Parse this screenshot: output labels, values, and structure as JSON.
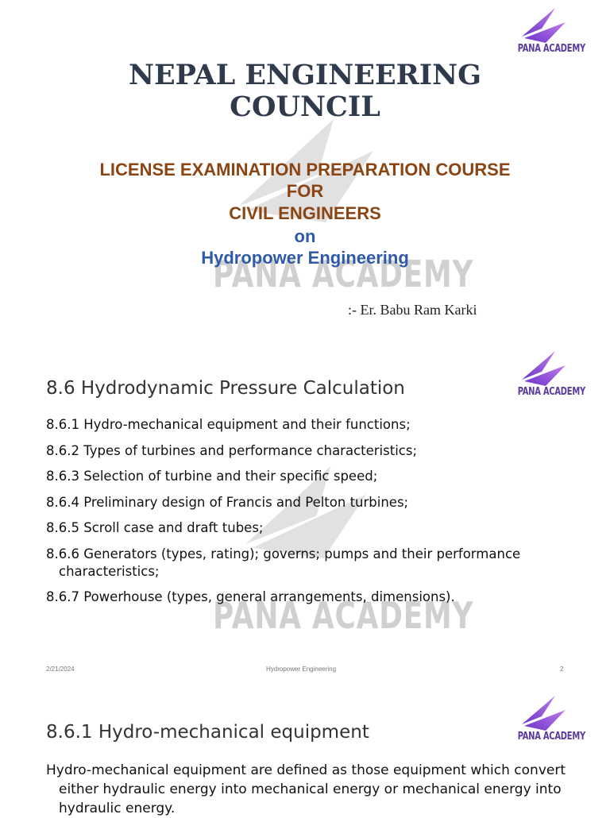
{
  "brand": {
    "logo_text": "PANA ACADEMY",
    "watermark_text": "PANA ACADEMY",
    "logo_colors": [
      "#7b3fd6",
      "#b06ce8"
    ]
  },
  "slide1": {
    "title_line1": "NEPAL ENGINEERING",
    "title_line2": "COUNCIL",
    "subtitle_line1": "LICENSE EXAMINATION PREPARATION COURSE",
    "subtitle_line2": "FOR",
    "subtitle_line3": "CIVIL ENGINEERS",
    "subtitle_on": "on",
    "subtitle_topic": "Hydropower Engineering",
    "author": ":- Er. Babu Ram Karki",
    "colors": {
      "title": "#2f3b4c",
      "subtitle": "#8b4513",
      "topic": "#2e5aa8"
    }
  },
  "slide2": {
    "heading": "8.6 Hydrodynamic Pressure Calculation",
    "items": [
      "8.6.1 Hydro-mechanical equipment and their functions;",
      "8.6.2 Types of turbines and performance characteristics;",
      "8.6.3 Selection of turbine and their specific speed;",
      "8.6.4 Preliminary design of Francis and Pelton turbines;",
      "8.6.5 Scroll case and draft tubes;",
      "8.6.6 Generators (types, rating); governs; pumps and their performance characteristics;",
      "8.6.7 Powerhouse (types, general arrangements, dimensions)."
    ],
    "footer": {
      "date": "2/21/2024",
      "title": "Hydropower Engineering",
      "page": "2"
    }
  },
  "slide3": {
    "heading": "8.6.1 Hydro-mechanical equipment",
    "paragraph": "Hydro-mechanical equipment are defined as those equipment which convert either hydraulic energy into mechanical energy or mechanical energy into hydraulic energy."
  }
}
